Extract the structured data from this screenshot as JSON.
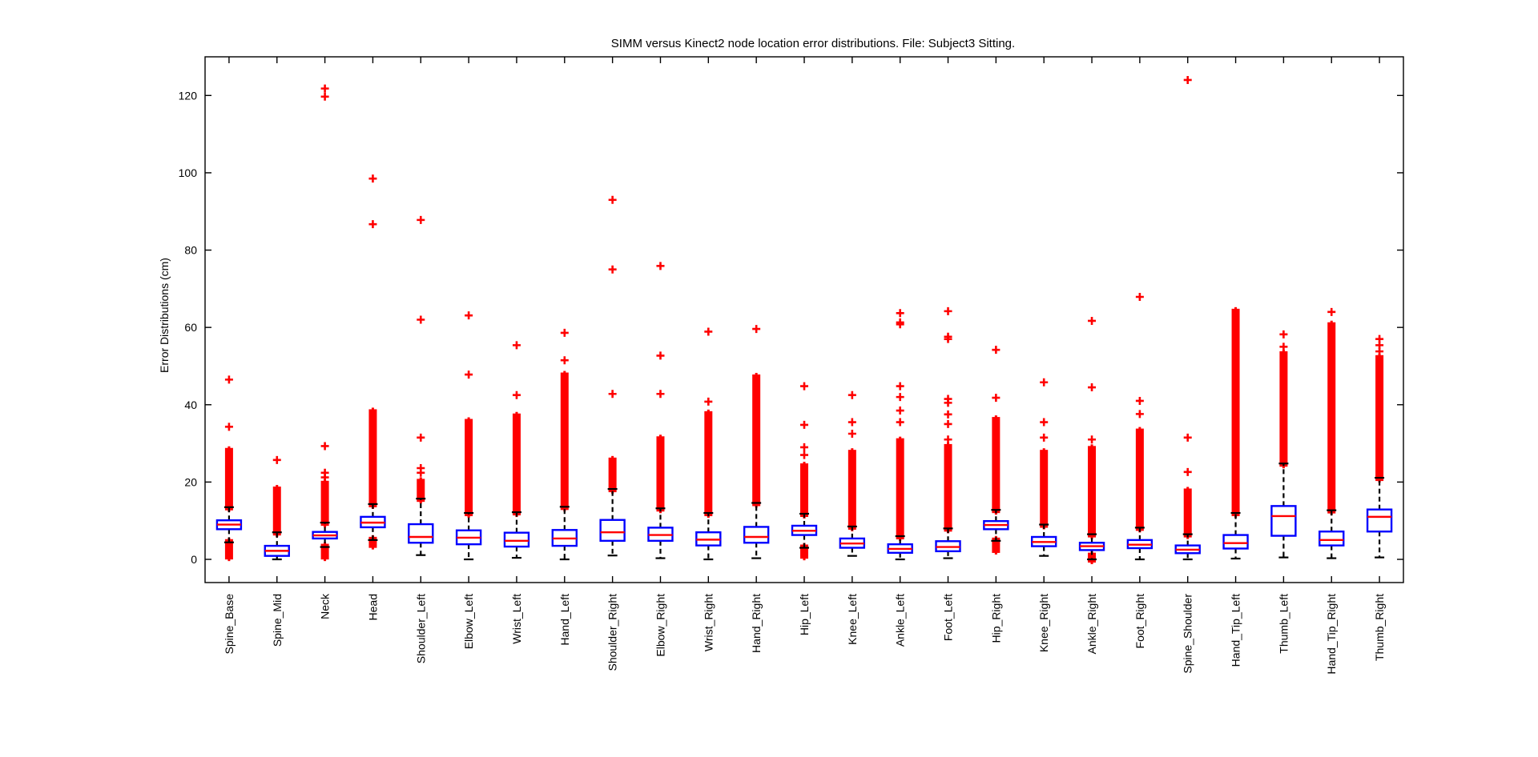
{
  "chart_data": {
    "type": "box",
    "title": "SIMM versus Kinect2 node location error distributions. File: Subject3 Sitting.",
    "xlabel": "",
    "ylabel": "Error Distributions (cm)",
    "ylim": [
      -6,
      130
    ],
    "yticks": [
      0,
      20,
      40,
      60,
      80,
      100,
      120
    ],
    "grid": false,
    "colors": {
      "box": "#0000ff",
      "median": "#ff0000",
      "whisker": "#000000",
      "outlier": "#ff0000"
    },
    "categories": [
      "Spine_Base",
      "Spine_Mid",
      "Neck",
      "Head",
      "Shoulder_Left",
      "Elbow_Left",
      "Wrist_Left",
      "Hand_Left",
      "Shoulder_Right",
      "Elbow_Right",
      "Wrist_Right",
      "Hand_Right",
      "Hip_Left",
      "Knee_Left",
      "Ankle_Left",
      "Foot_Left",
      "Hip_Right",
      "Knee_Right",
      "Ankle_Right",
      "Foot_Right",
      "Spine_Shoulder",
      "Hand_Tip_Left",
      "Thumb_Left",
      "Hand_Tip_Right",
      "Thumb_Right"
    ],
    "boxes": [
      {
        "q1": 7.8,
        "median": 9.0,
        "q3": 10.1,
        "lower_whisker": 4.4,
        "upper_whisker": 13.5,
        "outlier_band_high": [
          13.5,
          28.0
        ],
        "outlier_band_low": [
          0.8,
          4.4
        ],
        "outliers": [
          34.3,
          46.5
        ]
      },
      {
        "q1": 0.9,
        "median": 2.2,
        "q3": 3.5,
        "lower_whisker": 0.0,
        "upper_whisker": 7.0,
        "outlier_band_high": [
          7.0,
          18.0
        ],
        "outliers": [
          25.7
        ]
      },
      {
        "q1": 5.4,
        "median": 6.2,
        "q3": 7.1,
        "lower_whisker": 3.2,
        "upper_whisker": 9.5,
        "outlier_band_high": [
          9.5,
          19.5
        ],
        "outlier_band_low": [
          0.8,
          3.2
        ],
        "outliers": [
          21.2,
          22.4,
          29.3,
          119.7,
          121.8
        ]
      },
      {
        "q1": 8.3,
        "median": 9.5,
        "q3": 11.0,
        "lower_whisker": 5.0,
        "upper_whisker": 14.3,
        "outlier_band_high": [
          14.3,
          38.0
        ],
        "outlier_band_low": [
          3.8,
          5.0
        ],
        "outliers": [
          86.7,
          98.5
        ]
      },
      {
        "q1": 4.3,
        "median": 5.8,
        "q3": 9.1,
        "lower_whisker": 1.1,
        "upper_whisker": 15.7,
        "outlier_band_high": [
          15.7,
          20.0
        ],
        "outliers": [
          22.4,
          23.6,
          31.5,
          62.0,
          87.8
        ]
      },
      {
        "q1": 3.9,
        "median": 5.6,
        "q3": 7.5,
        "lower_whisker": 0.0,
        "upper_whisker": 12.0,
        "outlier_band_high": [
          12.0,
          35.5
        ],
        "outliers": [
          47.8,
          63.1
        ]
      },
      {
        "q1": 3.3,
        "median": 4.8,
        "q3": 6.9,
        "lower_whisker": 0.4,
        "upper_whisker": 12.2,
        "outlier_band_high": [
          12.2,
          36.9
        ],
        "outliers": [
          42.5,
          55.4
        ]
      },
      {
        "q1": 3.5,
        "median": 5.4,
        "q3": 7.6,
        "lower_whisker": 0.0,
        "upper_whisker": 13.6,
        "outlier_band_high": [
          13.6,
          47.5
        ],
        "outliers": [
          51.5,
          58.6
        ]
      },
      {
        "q1": 4.8,
        "median": 7.0,
        "q3": 10.2,
        "lower_whisker": 1.0,
        "upper_whisker": 18.2,
        "outlier_band_high": [
          18.2,
          25.5
        ],
        "outliers": [
          42.8,
          75.0,
          93.0
        ]
      },
      {
        "q1": 4.8,
        "median": 6.3,
        "q3": 8.2,
        "lower_whisker": 0.3,
        "upper_whisker": 13.2,
        "outlier_band_high": [
          13.2,
          31.0
        ],
        "outliers": [
          42.8,
          52.7,
          75.9
        ]
      },
      {
        "q1": 3.6,
        "median": 5.1,
        "q3": 7.0,
        "lower_whisker": 0.0,
        "upper_whisker": 12.0,
        "outlier_band_high": [
          12.0,
          37.5
        ],
        "outliers": [
          40.8,
          58.9
        ]
      },
      {
        "q1": 4.3,
        "median": 5.8,
        "q3": 8.4,
        "lower_whisker": 0.3,
        "upper_whisker": 14.6,
        "outlier_band_high": [
          14.6,
          47.0
        ],
        "outliers": [
          59.6
        ]
      },
      {
        "q1": 6.3,
        "median": 7.4,
        "q3": 8.7,
        "lower_whisker": 3.0,
        "upper_whisker": 11.8,
        "outlier_band_high": [
          11.8,
          24.0
        ],
        "outlier_band_low": [
          1.0,
          3.0
        ],
        "outliers": [
          27.0,
          29.0,
          34.8,
          44.8
        ]
      },
      {
        "q1": 3.0,
        "median": 4.1,
        "q3": 5.4,
        "lower_whisker": 0.9,
        "upper_whisker": 8.5,
        "outlier_band_high": [
          8.5,
          27.5
        ],
        "outliers": [
          32.5,
          35.5,
          42.5
        ]
      },
      {
        "q1": 1.7,
        "median": 2.7,
        "q3": 3.9,
        "lower_whisker": 0.0,
        "upper_whisker": 6.0,
        "outlier_band_high": [
          6.0,
          30.5
        ],
        "outliers": [
          35.5,
          38.5,
          42.0,
          44.8,
          60.8,
          61.3,
          63.7
        ]
      },
      {
        "q1": 2.1,
        "median": 3.2,
        "q3": 4.7,
        "lower_whisker": 0.3,
        "upper_whisker": 8.0,
        "outlier_band_high": [
          8.0,
          29.0
        ],
        "outliers": [
          31.0,
          35.0,
          37.5,
          40.5,
          41.5,
          57.0,
          57.6,
          64.2
        ]
      },
      {
        "q1": 7.8,
        "median": 8.9,
        "q3": 9.9,
        "lower_whisker": 4.8,
        "upper_whisker": 12.8,
        "outlier_band_high": [
          12.8,
          36.0
        ],
        "outlier_band_low": [
          2.5,
          4.8
        ],
        "outliers": [
          41.8,
          54.2
        ]
      },
      {
        "q1": 3.4,
        "median": 4.5,
        "q3": 5.8,
        "lower_whisker": 0.9,
        "upper_whisker": 9.0,
        "outlier_band_high": [
          9.0,
          27.5
        ],
        "outliers": [
          31.5,
          35.5,
          45.8
        ]
      },
      {
        "q1": 2.4,
        "median": 3.4,
        "q3": 4.3,
        "lower_whisker": 0.0,
        "upper_whisker": 6.5,
        "outlier_band_high": [
          6.5,
          28.5
        ],
        "outlier_band_low": [
          0.0,
          0.9
        ],
        "outliers": [
          31.0,
          44.5,
          61.7
        ]
      },
      {
        "q1": 2.9,
        "median": 3.8,
        "q3": 5.0,
        "lower_whisker": 0.0,
        "upper_whisker": 8.2,
        "outlier_band_high": [
          8.2,
          33.0
        ],
        "outliers": [
          37.6,
          41.0,
          67.9
        ]
      },
      {
        "q1": 1.6,
        "median": 2.5,
        "q3": 3.6,
        "lower_whisker": 0.0,
        "upper_whisker": 6.5,
        "outlier_band_high": [
          6.5,
          17.5
        ],
        "outliers": [
          22.6,
          31.5,
          124.0
        ]
      },
      {
        "q1": 2.8,
        "median": 4.2,
        "q3": 6.3,
        "lower_whisker": 0.2,
        "upper_whisker": 12.0,
        "outlier_band_high": [
          12.0,
          64.0
        ],
        "outliers": []
      },
      {
        "q1": 6.1,
        "median": 11.2,
        "q3": 13.8,
        "lower_whisker": 0.5,
        "upper_whisker": 24.8,
        "outlier_band_high": [
          24.8,
          53.0
        ],
        "outliers": [
          55.0,
          58.2
        ]
      },
      {
        "q1": 3.6,
        "median": 5.0,
        "q3": 7.2,
        "lower_whisker": 0.3,
        "upper_whisker": 12.7,
        "outlier_band_high": [
          12.7,
          60.5
        ],
        "outliers": [
          64.0
        ]
      },
      {
        "q1": 7.2,
        "median": 11.0,
        "q3": 12.9,
        "lower_whisker": 0.5,
        "upper_whisker": 21.1,
        "outlier_band_high": [
          21.1,
          52.0
        ],
        "outliers": [
          53.8,
          55.4,
          57.0
        ]
      }
    ]
  }
}
